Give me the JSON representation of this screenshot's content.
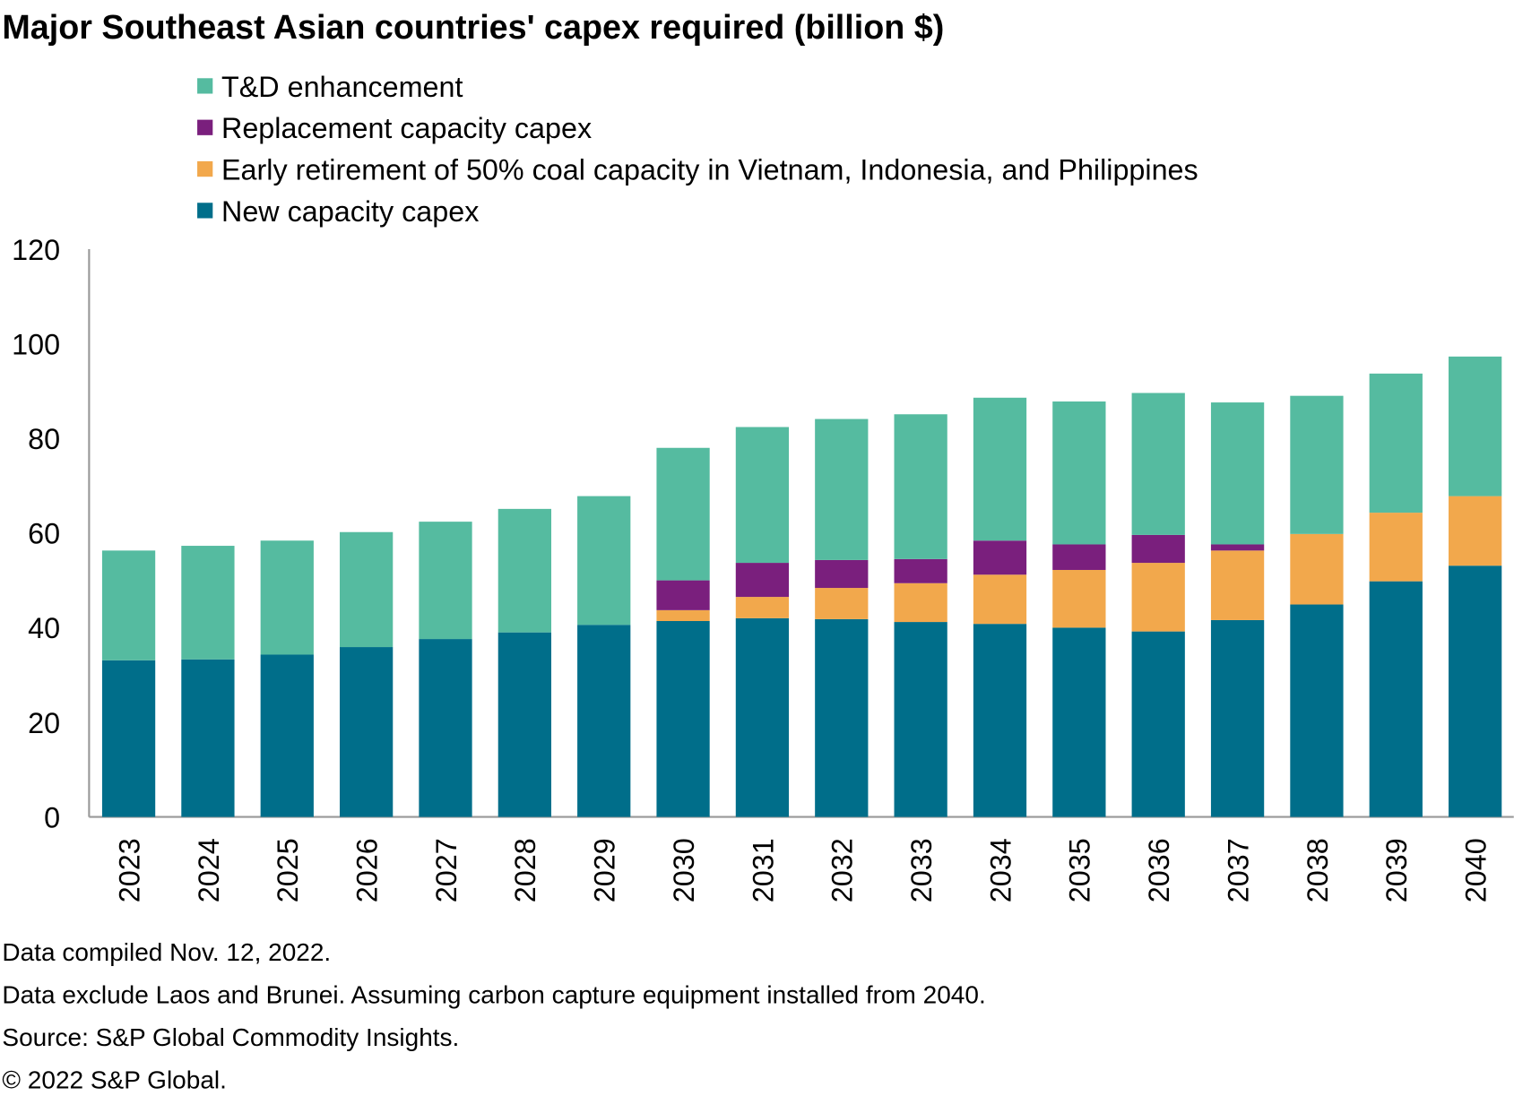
{
  "chart_data": {
    "type": "bar",
    "stacked": true,
    "title": "Major Southeast Asian countries' capex required (billion $)",
    "xlabel": "",
    "ylabel": "",
    "ylim": [
      0,
      120
    ],
    "yticks": [
      0,
      20,
      40,
      60,
      80,
      100,
      120
    ],
    "grid": false,
    "legend_placement": "top",
    "categories": [
      "2023",
      "2024",
      "2025",
      "2026",
      "2027",
      "2028",
      "2029",
      "2030",
      "2031",
      "2032",
      "2033",
      "2034",
      "2035",
      "2036",
      "2037",
      "2038",
      "2039",
      "2040"
    ],
    "series": [
      {
        "name": "New capacity capex",
        "color": "#006E8A",
        "values": [
          33.1,
          33.3,
          34.3,
          35.9,
          37.6,
          39.0,
          40.6,
          41.4,
          42.0,
          41.8,
          41.2,
          40.8,
          40.0,
          39.2,
          41.6,
          44.9,
          49.8,
          53.1
        ]
      },
      {
        "name": "Early retirement of 50% coal capacity in Vietnam, Indonesia, and Philippines",
        "color": "#F2A84C",
        "values": [
          0,
          0,
          0,
          0,
          0,
          0,
          0,
          2.3,
          4.5,
          6.6,
          8.2,
          10.4,
          12.2,
          14.5,
          14.7,
          14.9,
          14.5,
          14.7
        ]
      },
      {
        "name": "Replacement capacity capex",
        "color": "#7A1F7D",
        "values": [
          0,
          0,
          0,
          0,
          0,
          0,
          0,
          6.3,
          7.2,
          5.9,
          5.1,
          7.2,
          5.4,
          5.9,
          1.3,
          0,
          0,
          0
        ]
      },
      {
        "name": "T&D enhancement",
        "color": "#55BBA0",
        "values": [
          23.2,
          24.0,
          24.1,
          24.3,
          24.8,
          26.1,
          27.2,
          28.0,
          28.7,
          29.8,
          30.6,
          30.2,
          30.2,
          30.0,
          30.0,
          29.2,
          29.4,
          29.5
        ]
      }
    ],
    "legend_order": [
      "T&D enhancement",
      "Replacement capacity capex",
      "Early retirement of 50% coal capacity in Vietnam, Indonesia, and Philippines",
      "New capacity capex"
    ]
  },
  "notes": [
    "Data compiled Nov. 12, 2022.",
    "Data exclude Laos and Brunei. Assuming carbon capture equipment installed from 2040.",
    "Source: S&P Global Commodity Insights.",
    "© 2022 S&P Global."
  ]
}
